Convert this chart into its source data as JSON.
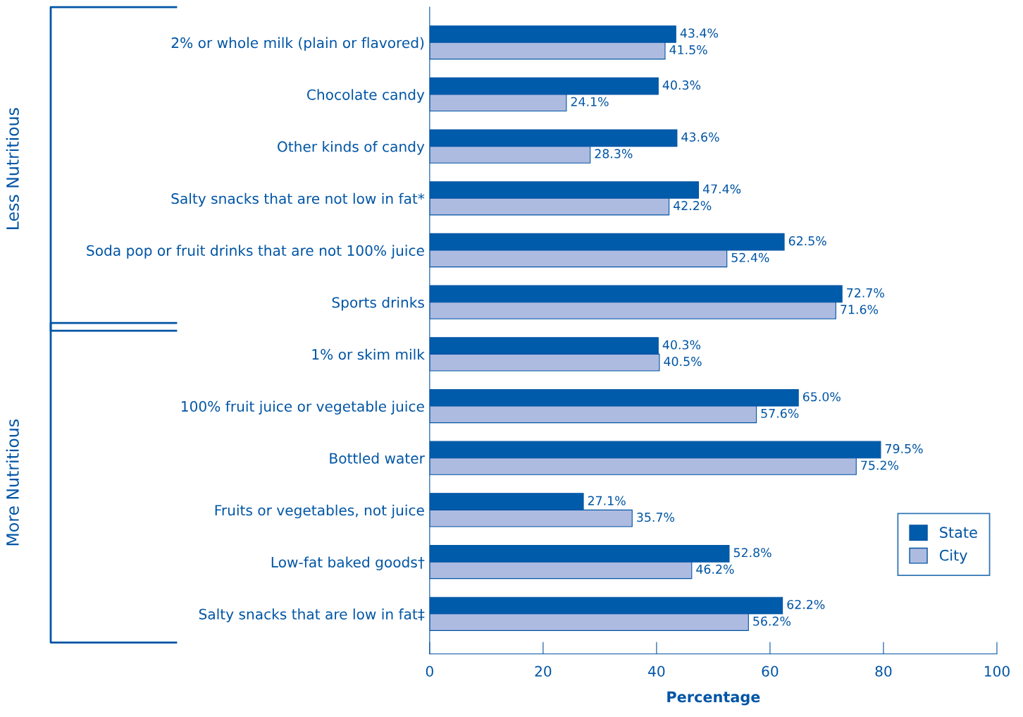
{
  "chart_data": {
    "type": "bar",
    "orientation": "horizontal",
    "xlabel": "Percentage",
    "categories": [
      "2% or whole milk (plain or flavored)",
      "Chocolate candy",
      "Other kinds of candy",
      "Salty snacks that are not low in fat*",
      "Soda pop or fruit drinks that are not 100% juice",
      "Sports drinks",
      "1% or skim milk",
      "100% fruit juice or vegetable juice",
      "Bottled water",
      "Fruits or vegetables, not juice",
      "Low-fat baked goods†",
      "Salty snacks that are low in fat‡"
    ],
    "series": [
      {
        "name": "State",
        "color": "#005baa",
        "values": [
          43.4,
          40.3,
          43.6,
          47.4,
          62.5,
          72.7,
          40.3,
          65.0,
          79.5,
          27.1,
          52.8,
          62.2
        ],
        "value_labels": [
          "43.4%",
          "40.3%",
          "43.6%",
          "47.4%",
          "62.5%",
          "72.7%",
          "40.3%",
          "65.0%",
          "79.5%",
          "27.1%",
          "52.8%",
          "62.2%"
        ]
      },
      {
        "name": "City",
        "color": "#aebbe0",
        "values": [
          41.5,
          24.1,
          28.3,
          42.2,
          52.4,
          71.6,
          40.5,
          57.6,
          75.2,
          35.7,
          46.2,
          56.2
        ],
        "value_labels": [
          "41.5%",
          "24.1%",
          "28.3%",
          "42.2%",
          "52.4%",
          "71.6%",
          "40.5%",
          "57.6%",
          "75.2%",
          "35.7%",
          "46.2%",
          "56.2%"
        ]
      }
    ],
    "xlim": [
      0,
      100
    ],
    "xticks": [
      0,
      20,
      40,
      60,
      80,
      100
    ],
    "grid": false,
    "legend": "bottom right",
    "annotations": [
      "Less Nutritious",
      "More Nutritious"
    ]
  }
}
